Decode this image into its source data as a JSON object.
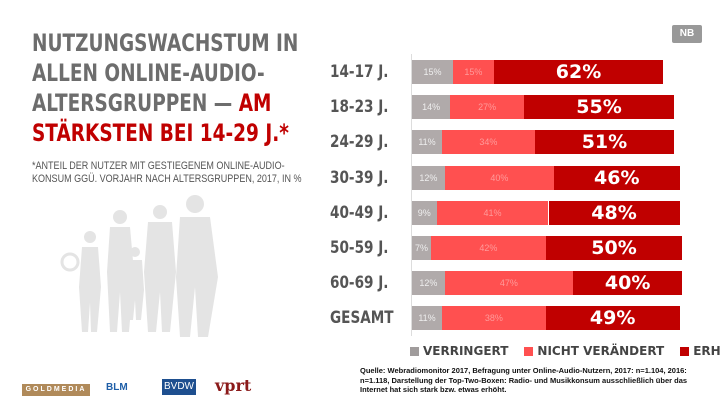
{
  "title": {
    "part1": "NUTZUNGSWACHSTUM IN ALLEN ONLINE-AUDIO-ALTERSGRUPPEN — ",
    "part2": "AM STÄRKSTEN BEI 14-29 J.*"
  },
  "subtitle": "*ANTEIL DER NUTZER MIT GESTIEGENEM ONLINE-AUDIO-KONSUM GGÜ. VORJAHR NACH ALTERSGRUPPEN, 2017, IN %",
  "badge": "NB",
  "chart_data": {
    "type": "bar",
    "orientation": "horizontal",
    "stacked": true,
    "categories": [
      "14-17 J.",
      "18-23 J.",
      "24-29 J.",
      "30-39 J.",
      "40-49 J.",
      "50-59 J.",
      "60-69 J.",
      "GESAMT"
    ],
    "series": [
      {
        "name": "VERRINGERT",
        "color": "#b0aaaa",
        "values": [
          15,
          14,
          11,
          12,
          9,
          7,
          12,
          11
        ]
      },
      {
        "name": "NICHT VERÄNDERT",
        "color": "#ff5050",
        "values": [
          15,
          27,
          34,
          40,
          41,
          42,
          47,
          38
        ]
      },
      {
        "name": "ERHÖHT",
        "color": "#c00000",
        "values": [
          62,
          55,
          51,
          46,
          48,
          50,
          40,
          49
        ]
      }
    ],
    "legend": "bottom"
  },
  "source": "Quelle: Webradiomonitor 2017, Befragung unter Online-Audio-Nutzern, 2017: n=1.104, 2016: n=1.118, Darstellung der Top-Two-Boxen: Radio- und Musikkonsum ausschließlich über das Internet hat sich stark bzw. etwas erhöht.",
  "logos": [
    "GOLDMEDIA",
    "BLM",
    "BVDW",
    "vprt"
  ]
}
